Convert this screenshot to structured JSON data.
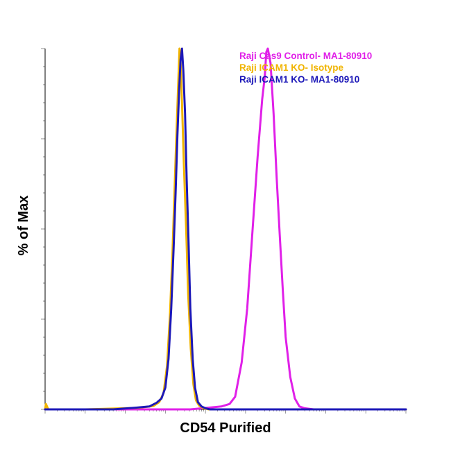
{
  "chart_data": {
    "type": "line",
    "title": "",
    "xlabel": "CD54 Purified",
    "ylabel": "% of Max",
    "x_scale": "log",
    "xlim": [
      1,
      1000000000
    ],
    "ylim": [
      0,
      100
    ],
    "grid": false,
    "legend_position": "top-right",
    "series": [
      {
        "name": "Raji Cas9 Control- MA1-80910",
        "color": "#e020e8",
        "x": [
          1,
          4200,
          13000,
          25000,
          40000,
          55000,
          80000,
          110000,
          150000,
          200000,
          260000,
          300000,
          330000,
          360000,
          420000,
          500000,
          600000,
          700000,
          850000,
          1000000,
          1300000,
          1700000,
          2200000,
          3000000,
          5000000,
          10000000,
          100000000,
          1000000000
        ],
        "y": [
          0,
          0,
          0.5,
          0.8,
          1.5,
          3.5,
          13,
          28,
          50,
          70,
          86,
          92,
          99,
          100,
          96,
          82,
          64,
          50,
          33,
          20,
          9,
          3,
          0.8,
          0.3,
          0,
          0,
          0,
          0
        ]
      },
      {
        "name": "Raji ICAM1 KO- Isotype",
        "color": "#f0b400",
        "x": [
          1,
          1.05,
          1.2,
          10,
          200,
          500,
          700,
          900,
          1100,
          1300,
          1500,
          1700,
          1900,
          2100,
          2250,
          2400,
          2600,
          2900,
          3300,
          3700,
          4300,
          5000,
          5800,
          7000,
          9000,
          12000,
          100000,
          1000000000
        ],
        "y": [
          0,
          1.5,
          0,
          0,
          0.4,
          0.9,
          2,
          4.5,
          12,
          26,
          43,
          61,
          77,
          91,
          100,
          96,
          85,
          68,
          50,
          32,
          17,
          7,
          2.5,
          1,
          0.3,
          0,
          0,
          0
        ]
      },
      {
        "name": "Raji ICAM1 KO- MA1-80910",
        "color": "#1c18b8",
        "x": [
          1,
          50,
          200,
          400,
          600,
          800,
          1000,
          1200,
          1400,
          1600,
          1800,
          2000,
          2200,
          2400,
          2600,
          2800,
          3100,
          3400,
          3800,
          4200,
          4800,
          5500,
          6500,
          8000,
          10000,
          13000,
          100000,
          1000000000
        ],
        "y": [
          0,
          0,
          0.5,
          0.8,
          1.8,
          3,
          6,
          14,
          28,
          44,
          60,
          76,
          88,
          97,
          100,
          94,
          82,
          64,
          46,
          28,
          14,
          6,
          2,
          0.8,
          0.3,
          0,
          0,
          0
        ]
      }
    ]
  }
}
